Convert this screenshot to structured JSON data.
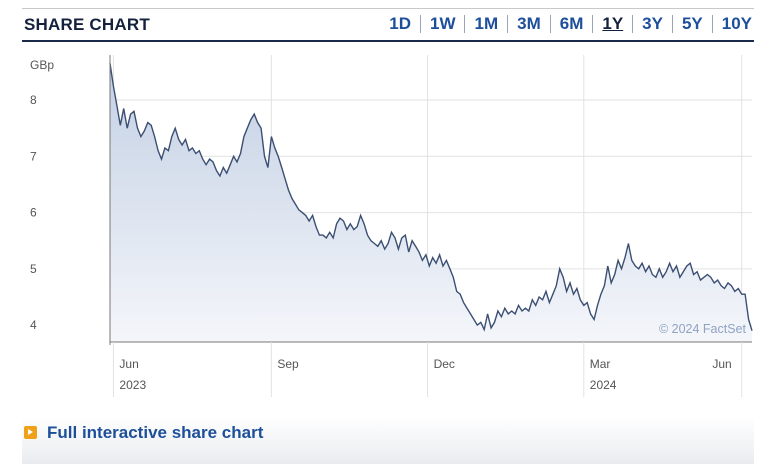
{
  "header": {
    "title": "SHARE CHART",
    "ranges": [
      "1D",
      "1W",
      "1M",
      "3M",
      "6M",
      "1Y",
      "3Y",
      "5Y",
      "10Y"
    ],
    "active_range": "1Y"
  },
  "footer": {
    "link_label": "Full interactive share chart"
  },
  "colors": {
    "line": "#3b4f73",
    "fill_top": "#c3d0e4",
    "fill_bottom": "#f4f6fa",
    "grid": "#e2e2e2",
    "axis": "#777777"
  },
  "chart_data": {
    "type": "area",
    "title": "",
    "ylabel": "GBp",
    "xlabel": "",
    "ylim": [
      3.7,
      8.8
    ],
    "yticks": [
      4,
      5,
      6,
      7,
      8
    ],
    "x_ticks": [
      {
        "label": "Jun",
        "year": "2023",
        "day": 2
      },
      {
        "label": "Sep",
        "year": "",
        "day": 94
      },
      {
        "label": "Dec",
        "year": "",
        "day": 185
      },
      {
        "label": "Mar",
        "year": "2024",
        "day": 276
      },
      {
        "label": "Jun",
        "year": "",
        "day": 368
      }
    ],
    "x_range_days": [
      0,
      374
    ],
    "grid": true,
    "watermark": "© 2024 FactSet",
    "series": [
      {
        "points": [
          [
            0,
            8.65
          ],
          [
            2,
            8.25
          ],
          [
            4,
            7.9
          ],
          [
            6,
            7.55
          ],
          [
            8,
            7.85
          ],
          [
            10,
            7.5
          ],
          [
            12,
            7.75
          ],
          [
            14,
            7.8
          ],
          [
            16,
            7.5
          ],
          [
            18,
            7.35
          ],
          [
            20,
            7.45
          ],
          [
            22,
            7.6
          ],
          [
            24,
            7.55
          ],
          [
            26,
            7.35
          ],
          [
            28,
            7.1
          ],
          [
            30,
            6.95
          ],
          [
            32,
            7.15
          ],
          [
            34,
            7.1
          ],
          [
            36,
            7.35
          ],
          [
            38,
            7.5
          ],
          [
            40,
            7.3
          ],
          [
            42,
            7.2
          ],
          [
            44,
            7.3
          ],
          [
            46,
            7.1
          ],
          [
            48,
            7.15
          ],
          [
            50,
            7.05
          ],
          [
            52,
            7.1
          ],
          [
            54,
            6.95
          ],
          [
            56,
            6.85
          ],
          [
            58,
            6.95
          ],
          [
            60,
            6.9
          ],
          [
            62,
            6.75
          ],
          [
            64,
            6.65
          ],
          [
            66,
            6.8
          ],
          [
            68,
            6.7
          ],
          [
            70,
            6.85
          ],
          [
            72,
            7.0
          ],
          [
            74,
            6.9
          ],
          [
            76,
            7.05
          ],
          [
            78,
            7.35
          ],
          [
            80,
            7.5
          ],
          [
            82,
            7.65
          ],
          [
            84,
            7.75
          ],
          [
            86,
            7.6
          ],
          [
            88,
            7.5
          ],
          [
            90,
            7.0
          ],
          [
            92,
            6.8
          ],
          [
            94,
            7.35
          ],
          [
            96,
            7.15
          ],
          [
            98,
            7.0
          ],
          [
            100,
            6.8
          ],
          [
            102,
            6.6
          ],
          [
            104,
            6.4
          ],
          [
            106,
            6.25
          ],
          [
            108,
            6.15
          ],
          [
            110,
            6.05
          ],
          [
            112,
            6.0
          ],
          [
            114,
            5.95
          ],
          [
            116,
            5.85
          ],
          [
            118,
            5.95
          ],
          [
            120,
            5.75
          ],
          [
            122,
            5.6
          ],
          [
            124,
            5.6
          ],
          [
            126,
            5.55
          ],
          [
            128,
            5.65
          ],
          [
            130,
            5.55
          ],
          [
            132,
            5.8
          ],
          [
            134,
            5.9
          ],
          [
            136,
            5.85
          ],
          [
            138,
            5.7
          ],
          [
            140,
            5.8
          ],
          [
            142,
            5.7
          ],
          [
            144,
            5.75
          ],
          [
            146,
            5.95
          ],
          [
            148,
            5.8
          ],
          [
            150,
            5.6
          ],
          [
            152,
            5.5
          ],
          [
            154,
            5.45
          ],
          [
            156,
            5.4
          ],
          [
            158,
            5.5
          ],
          [
            160,
            5.35
          ],
          [
            162,
            5.45
          ],
          [
            164,
            5.65
          ],
          [
            166,
            5.55
          ],
          [
            168,
            5.35
          ],
          [
            170,
            5.55
          ],
          [
            172,
            5.6
          ],
          [
            174,
            5.3
          ],
          [
            176,
            5.5
          ],
          [
            178,
            5.4
          ],
          [
            180,
            5.3
          ],
          [
            182,
            5.15
          ],
          [
            184,
            5.25
          ],
          [
            186,
            5.05
          ],
          [
            188,
            5.2
          ],
          [
            190,
            5.1
          ],
          [
            192,
            5.25
          ],
          [
            194,
            5.05
          ],
          [
            196,
            5.15
          ],
          [
            198,
            5.0
          ],
          [
            200,
            4.85
          ],
          [
            202,
            4.6
          ],
          [
            204,
            4.55
          ],
          [
            206,
            4.4
          ],
          [
            208,
            4.3
          ],
          [
            210,
            4.2
          ],
          [
            212,
            4.1
          ],
          [
            214,
            4.0
          ],
          [
            216,
            4.05
          ],
          [
            218,
            3.92
          ],
          [
            220,
            4.2
          ],
          [
            222,
            3.95
          ],
          [
            224,
            4.05
          ],
          [
            226,
            4.25
          ],
          [
            228,
            4.15
          ],
          [
            230,
            4.3
          ],
          [
            232,
            4.2
          ],
          [
            234,
            4.25
          ],
          [
            236,
            4.2
          ],
          [
            238,
            4.35
          ],
          [
            240,
            4.25
          ],
          [
            242,
            4.3
          ],
          [
            244,
            4.25
          ],
          [
            246,
            4.45
          ],
          [
            248,
            4.35
          ],
          [
            250,
            4.5
          ],
          [
            252,
            4.45
          ],
          [
            254,
            4.6
          ],
          [
            256,
            4.4
          ],
          [
            258,
            4.55
          ],
          [
            260,
            4.7
          ],
          [
            262,
            5.0
          ],
          [
            264,
            4.85
          ],
          [
            266,
            4.6
          ],
          [
            268,
            4.75
          ],
          [
            270,
            4.55
          ],
          [
            272,
            4.65
          ],
          [
            274,
            4.45
          ],
          [
            276,
            4.35
          ],
          [
            278,
            4.4
          ],
          [
            280,
            4.2
          ],
          [
            282,
            4.1
          ],
          [
            284,
            4.35
          ],
          [
            286,
            4.55
          ],
          [
            288,
            4.7
          ],
          [
            290,
            5.05
          ],
          [
            292,
            4.75
          ],
          [
            294,
            4.9
          ],
          [
            296,
            5.15
          ],
          [
            298,
            5.0
          ],
          [
            300,
            5.2
          ],
          [
            302,
            5.45
          ],
          [
            304,
            5.15
          ],
          [
            306,
            5.05
          ],
          [
            308,
            5.0
          ],
          [
            310,
            5.1
          ],
          [
            312,
            4.95
          ],
          [
            314,
            5.05
          ],
          [
            316,
            4.9
          ],
          [
            318,
            4.85
          ],
          [
            320,
            5.0
          ],
          [
            322,
            4.85
          ],
          [
            324,
            4.95
          ],
          [
            326,
            5.1
          ],
          [
            328,
            4.95
          ],
          [
            330,
            5.05
          ],
          [
            332,
            4.85
          ],
          [
            334,
            4.95
          ],
          [
            336,
            5.05
          ],
          [
            338,
            5.1
          ],
          [
            340,
            4.9
          ],
          [
            342,
            4.95
          ],
          [
            344,
            4.8
          ],
          [
            346,
            4.85
          ],
          [
            348,
            4.9
          ],
          [
            350,
            4.85
          ],
          [
            352,
            4.75
          ],
          [
            354,
            4.8
          ],
          [
            356,
            4.7
          ],
          [
            358,
            4.65
          ],
          [
            360,
            4.75
          ],
          [
            362,
            4.7
          ],
          [
            364,
            4.6
          ],
          [
            366,
            4.65
          ],
          [
            368,
            4.55
          ],
          [
            370,
            4.55
          ],
          [
            372,
            4.1
          ],
          [
            374,
            3.9
          ]
        ]
      }
    ]
  }
}
